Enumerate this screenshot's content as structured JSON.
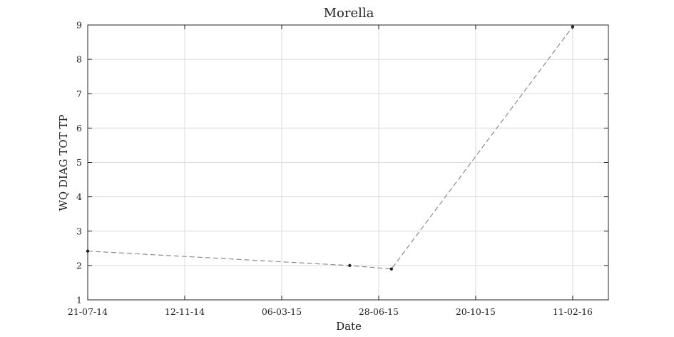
{
  "chart_data": {
    "type": "line",
    "title": "Morella",
    "xlabel": "Date",
    "ylabel": "WQ DIAG TOT TP",
    "x_ticks": [
      "21-07-14",
      "12-11-14",
      "06-03-15",
      "28-06-15",
      "20-10-15",
      "11-02-16"
    ],
    "x_tick_dates": [
      "2014-07-21",
      "2014-11-12",
      "2015-03-06",
      "2015-06-28",
      "2015-10-20",
      "2016-02-11"
    ],
    "xlim": [
      "2014-07-21",
      "2016-03-24"
    ],
    "ylim": [
      1,
      9
    ],
    "y_ticks": [
      1,
      2,
      3,
      4,
      5,
      6,
      7,
      8,
      9
    ],
    "grid": true,
    "series": [
      {
        "x": [
          "2014-07-21",
          "2015-05-25",
          "2015-07-13",
          "2016-02-11"
        ],
        "y": [
          2.42,
          2.0,
          1.9,
          8.95
        ],
        "color": "#8c8c8c",
        "line_style": "dashed",
        "marker_color": "#222222"
      }
    ]
  }
}
